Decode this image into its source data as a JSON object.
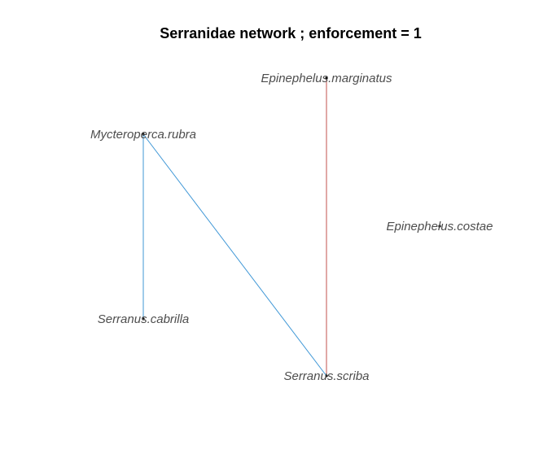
{
  "title": "Serranidae network ; enforcement = 1",
  "nodes": [
    {
      "id": "marginatus",
      "label": "Epinephelus.marginatus"
    },
    {
      "id": "rubra",
      "label": "Mycteroperca.rubra"
    },
    {
      "id": "costae",
      "label": "Epinephelus.costae"
    },
    {
      "id": "cabrilla",
      "label": "Serranus.cabrilla"
    },
    {
      "id": "scriba",
      "label": "Serranus.scriba"
    }
  ],
  "edges": [
    {
      "from": "rubra",
      "to": "cabrilla",
      "color": "#3f97d6"
    },
    {
      "from": "rubra",
      "to": "scriba",
      "color": "#3f97d6"
    },
    {
      "from": "marginatus",
      "to": "scriba",
      "color": "#c0504d"
    }
  ],
  "colors": {
    "positive_edge": "#3f97d6",
    "negative_edge": "#c0504d",
    "label_text": "#4d4d4d",
    "title_text": "#000000"
  }
}
